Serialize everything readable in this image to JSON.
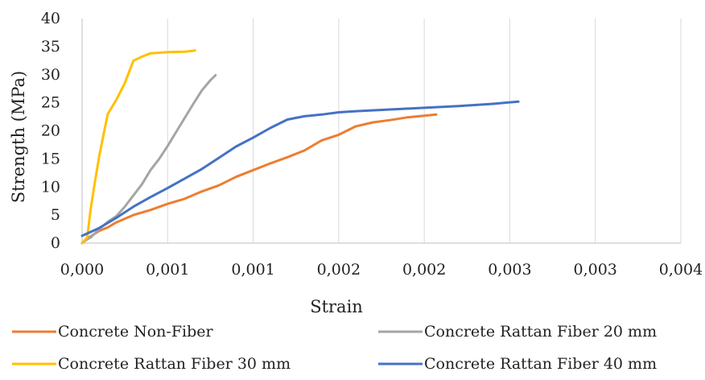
{
  "chart_data": {
    "type": "line",
    "xlabel": "Strain",
    "ylabel": "Strength (MPa)",
    "x_tick_labels": [
      "0,000",
      "0,001",
      "0,001",
      "0,002",
      "0,002",
      "0,003",
      "0,003",
      "0,004"
    ],
    "y_tick_labels": [
      "0",
      "5",
      "10",
      "15",
      "20",
      "25",
      "30",
      "35",
      "40"
    ],
    "xlim": [
      0,
      0.0035
    ],
    "ylim": [
      0,
      40
    ],
    "grid": "vertical",
    "legend_position": "bottom",
    "series": [
      {
        "name": "Concrete Non-Fiber",
        "color": "#ED7D31",
        "points": [
          [
            0,
            0
          ],
          [
            5e-05,
            1.2
          ],
          [
            0.0001,
            2.2
          ],
          [
            0.00015,
            2.8
          ],
          [
            0.0002,
            3.7
          ],
          [
            0.0003,
            5
          ],
          [
            0.0004,
            5.9
          ],
          [
            0.0005,
            7
          ],
          [
            0.0006,
            7.9
          ],
          [
            0.0007,
            9.2
          ],
          [
            0.0008,
            10.3
          ],
          [
            0.0009,
            11.8
          ],
          [
            0.001,
            13
          ],
          [
            0.0011,
            14.2
          ],
          [
            0.0012,
            15.3
          ],
          [
            0.0013,
            16.5
          ],
          [
            0.0014,
            18.3
          ],
          [
            0.0015,
            19.3
          ],
          [
            0.0016,
            20.8
          ],
          [
            0.0017,
            21.5
          ],
          [
            0.0018,
            21.9
          ],
          [
            0.0019,
            22.4
          ],
          [
            0.002,
            22.7
          ],
          [
            0.00207,
            22.9
          ]
        ]
      },
      {
        "name": "Concrete Rattan Fiber 20 mm",
        "color": "#A5A5A5",
        "points": [
          [
            0,
            0
          ],
          [
            2e-05,
            0.5
          ],
          [
            5e-05,
            1
          ],
          [
            0.0001,
            2.5
          ],
          [
            0.00015,
            3.8
          ],
          [
            0.0002,
            4.8
          ],
          [
            0.00025,
            6.5
          ],
          [
            0.0003,
            8.5
          ],
          [
            0.00035,
            10.5
          ],
          [
            0.0004,
            13
          ],
          [
            0.00045,
            15
          ],
          [
            0.0005,
            17.3
          ],
          [
            0.00055,
            19.8
          ],
          [
            0.0006,
            22.3
          ],
          [
            0.00065,
            24.8
          ],
          [
            0.0007,
            27.2
          ],
          [
            0.00075,
            29
          ],
          [
            0.00078,
            29.9
          ]
        ]
      },
      {
        "name": "Concrete Rattan Fiber 30 mm",
        "color": "#FFC000",
        "points": [
          [
            0,
            0
          ],
          [
            3e-05,
            1
          ],
          [
            5e-05,
            6
          ],
          [
            7e-05,
            10
          ],
          [
            0.0001,
            15.5
          ],
          [
            0.00013,
            20
          ],
          [
            0.00015,
            23
          ],
          [
            0.0002,
            25.5
          ],
          [
            0.00025,
            28.5
          ],
          [
            0.0003,
            32.5
          ],
          [
            0.00035,
            33.2
          ],
          [
            0.0004,
            33.8
          ],
          [
            0.0005,
            34
          ],
          [
            0.0006,
            34.1
          ],
          [
            0.00066,
            34.3
          ]
        ]
      },
      {
        "name": "Concrete Rattan Fiber 40 mm",
        "color": "#4472C4",
        "points": [
          [
            0,
            1.3
          ],
          [
            0.0001,
            2.7
          ],
          [
            0.0002,
            4.5
          ],
          [
            0.0003,
            6.5
          ],
          [
            0.0004,
            8.2
          ],
          [
            0.0005,
            9.8
          ],
          [
            0.0006,
            11.5
          ],
          [
            0.0007,
            13.2
          ],
          [
            0.0008,
            15.2
          ],
          [
            0.0009,
            17.2
          ],
          [
            0.001,
            18.8
          ],
          [
            0.0011,
            20.5
          ],
          [
            0.0012,
            22
          ],
          [
            0.0013,
            22.6
          ],
          [
            0.0014,
            22.9
          ],
          [
            0.0015,
            23.3
          ],
          [
            0.0016,
            23.5
          ],
          [
            0.0018,
            23.8
          ],
          [
            0.002,
            24.1
          ],
          [
            0.0022,
            24.4
          ],
          [
            0.0024,
            24.8
          ],
          [
            0.00255,
            25.2
          ]
        ]
      }
    ]
  }
}
